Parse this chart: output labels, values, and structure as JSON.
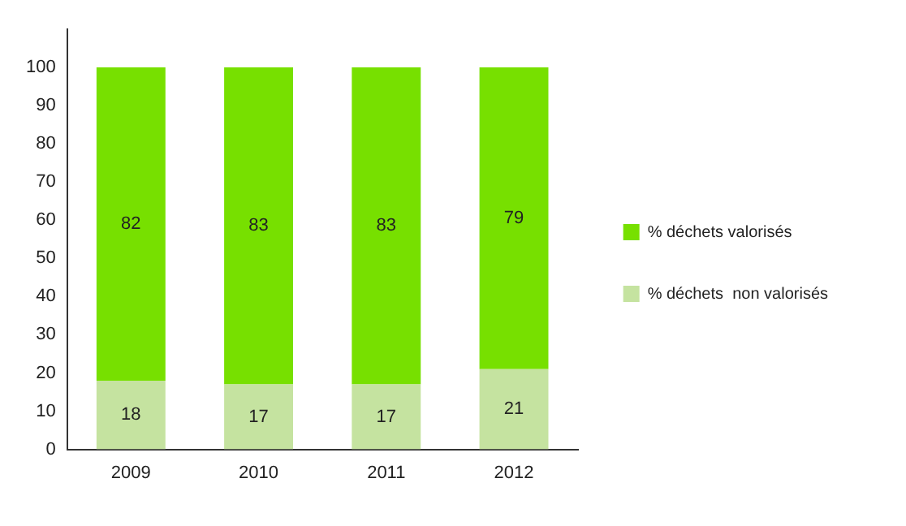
{
  "chart_data": {
    "type": "bar",
    "stacked": true,
    "categories": [
      "2009",
      "2010",
      "2011",
      "2012"
    ],
    "series": [
      {
        "name": "% déchets  non valorisés",
        "color": "#c5e3a0",
        "values": [
          18,
          17,
          17,
          21
        ]
      },
      {
        "name": "% déchets valorisés",
        "color": "#77e000",
        "values": [
          82,
          83,
          83,
          79
        ]
      }
    ],
    "ylim": [
      0,
      110
    ],
    "yticks": [
      0,
      10,
      20,
      30,
      40,
      50,
      60,
      70,
      80,
      90,
      100
    ],
    "grid": false,
    "legend": "right",
    "data_labels": true
  }
}
